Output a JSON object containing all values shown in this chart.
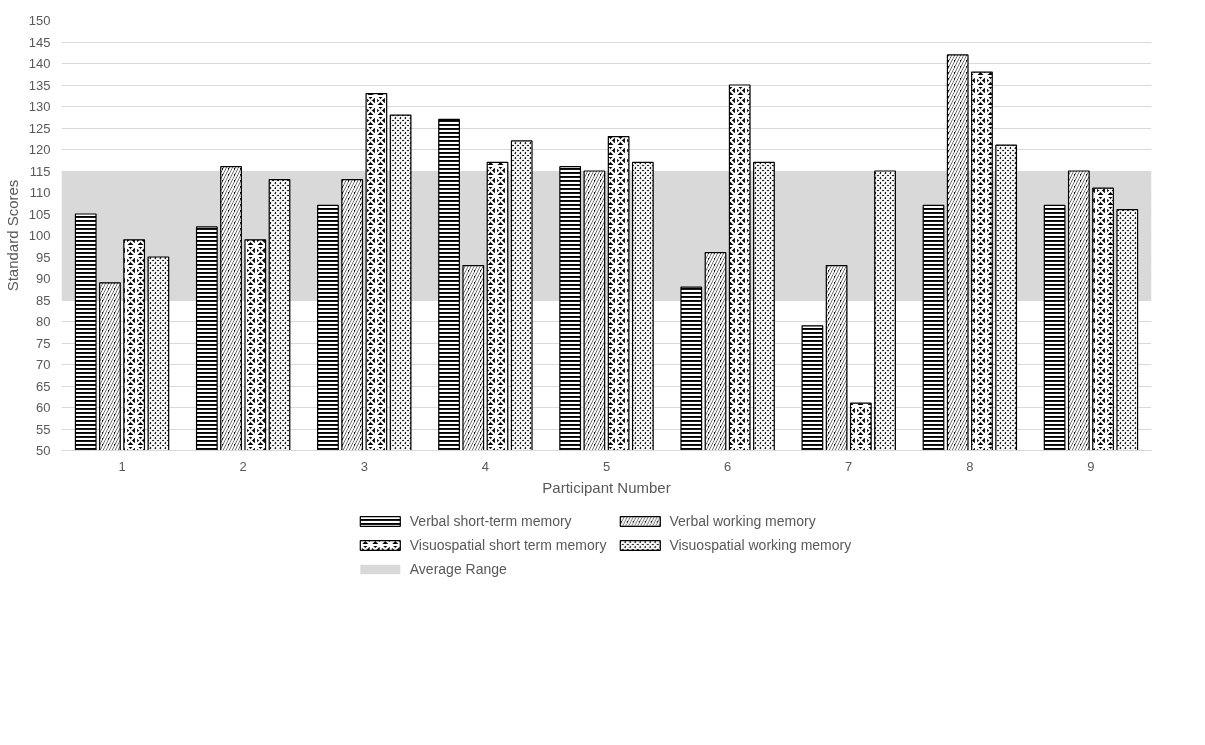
{
  "chart_data": {
    "type": "bar",
    "xlabel": "Participant Number",
    "ylabel": "Standard Scores",
    "categories": [
      "1",
      "2",
      "3",
      "4",
      "5",
      "6",
      "7",
      "8",
      "9"
    ],
    "series": [
      {
        "name": "Verbal short-term memory",
        "color": "#000000",
        "values": [
          105,
          102,
          107,
          127,
          116,
          88,
          79,
          107,
          107
        ]
      },
      {
        "name": "Verbal working memory",
        "color": "#000000",
        "values": [
          89,
          116,
          113,
          93,
          115,
          96,
          93,
          142,
          115
        ]
      },
      {
        "name": "Visuospatial short term memory",
        "color": "#000000",
        "values": [
          99,
          99,
          133,
          117,
          123,
          135,
          61,
          138,
          111
        ]
      },
      {
        "name": "Visuospatial working memory",
        "color": "#000000",
        "values": [
          95,
          113,
          128,
          122,
          117,
          117,
          115,
          121,
          106
        ]
      }
    ],
    "bands": [
      {
        "axis": "y",
        "from": 85,
        "to": 115,
        "label": "Average Range",
        "color": "#d9d9d9"
      }
    ],
    "ylim": [
      50,
      150
    ],
    "yticks": [
      50,
      55,
      60,
      65,
      70,
      75,
      80,
      85,
      90,
      95,
      100,
      105,
      110,
      115,
      120,
      125,
      130,
      135,
      140,
      145,
      150
    ],
    "grid": "y",
    "legend": "bottom"
  }
}
